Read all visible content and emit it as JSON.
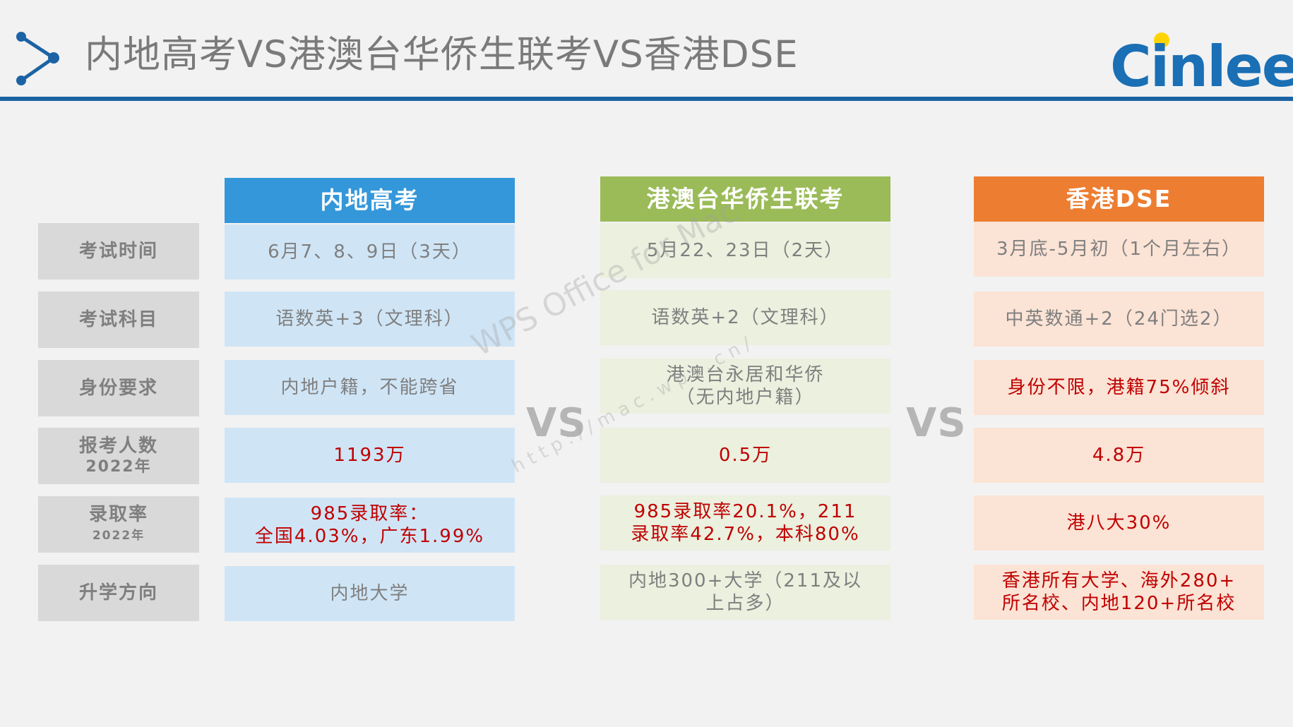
{
  "header": {
    "title": "内地高考VS港澳台华侨生联考VS香港DSE",
    "logo_text": "Cinlee",
    "accent_color": "#1c63a4"
  },
  "columns": [
    {
      "title": "内地高考",
      "color": "#3497da"
    },
    {
      "title": "港澳台华侨生联考",
      "color": "#9bbb59"
    },
    {
      "title": "香港DSE",
      "color": "#ed7d31"
    }
  ],
  "vs_labels": [
    "VS",
    "VS"
  ],
  "watermark": {
    "line1": "WPS Office for Mac",
    "line2": "http://mac.wps.cn/"
  },
  "rows": [
    {
      "label": "考试时间",
      "sub": "",
      "cells": [
        "6月7、8、9日（3天）",
        "5月22、23日（2天）",
        "3月底-5月初（1个月左右）"
      ]
    },
    {
      "label": "考试科目",
      "sub": "",
      "cells": [
        "语数英+3（文理科）",
        "语数英+2（文理科）",
        "中英数通+2（24门选2）"
      ]
    },
    {
      "label": "身份要求",
      "sub": "",
      "cells": [
        "内地户籍，不能跨省",
        "港澳台永居和华侨\n（无内地户籍）",
        "身份不限，港籍75%倾斜"
      ]
    },
    {
      "label": "报考人数",
      "sub": "2022年",
      "cells": [
        "1193万",
        "0.5万",
        "4.8万"
      ]
    },
    {
      "label": "录取率",
      "sub": "2022年",
      "cells": [
        "985录取率：\n全国4.03%，广东1.99%",
        "985录取率20.1%，211\n录取率42.7%，本科80%",
        "港八大30%"
      ]
    },
    {
      "label": "升学方向",
      "sub": "",
      "cells": [
        "内地大学",
        "内地300+大学（211及以\n上占多）",
        "香港所有大学、海外280+\n所名校、内地120+所名校"
      ]
    }
  ],
  "red_color": "#c00000"
}
